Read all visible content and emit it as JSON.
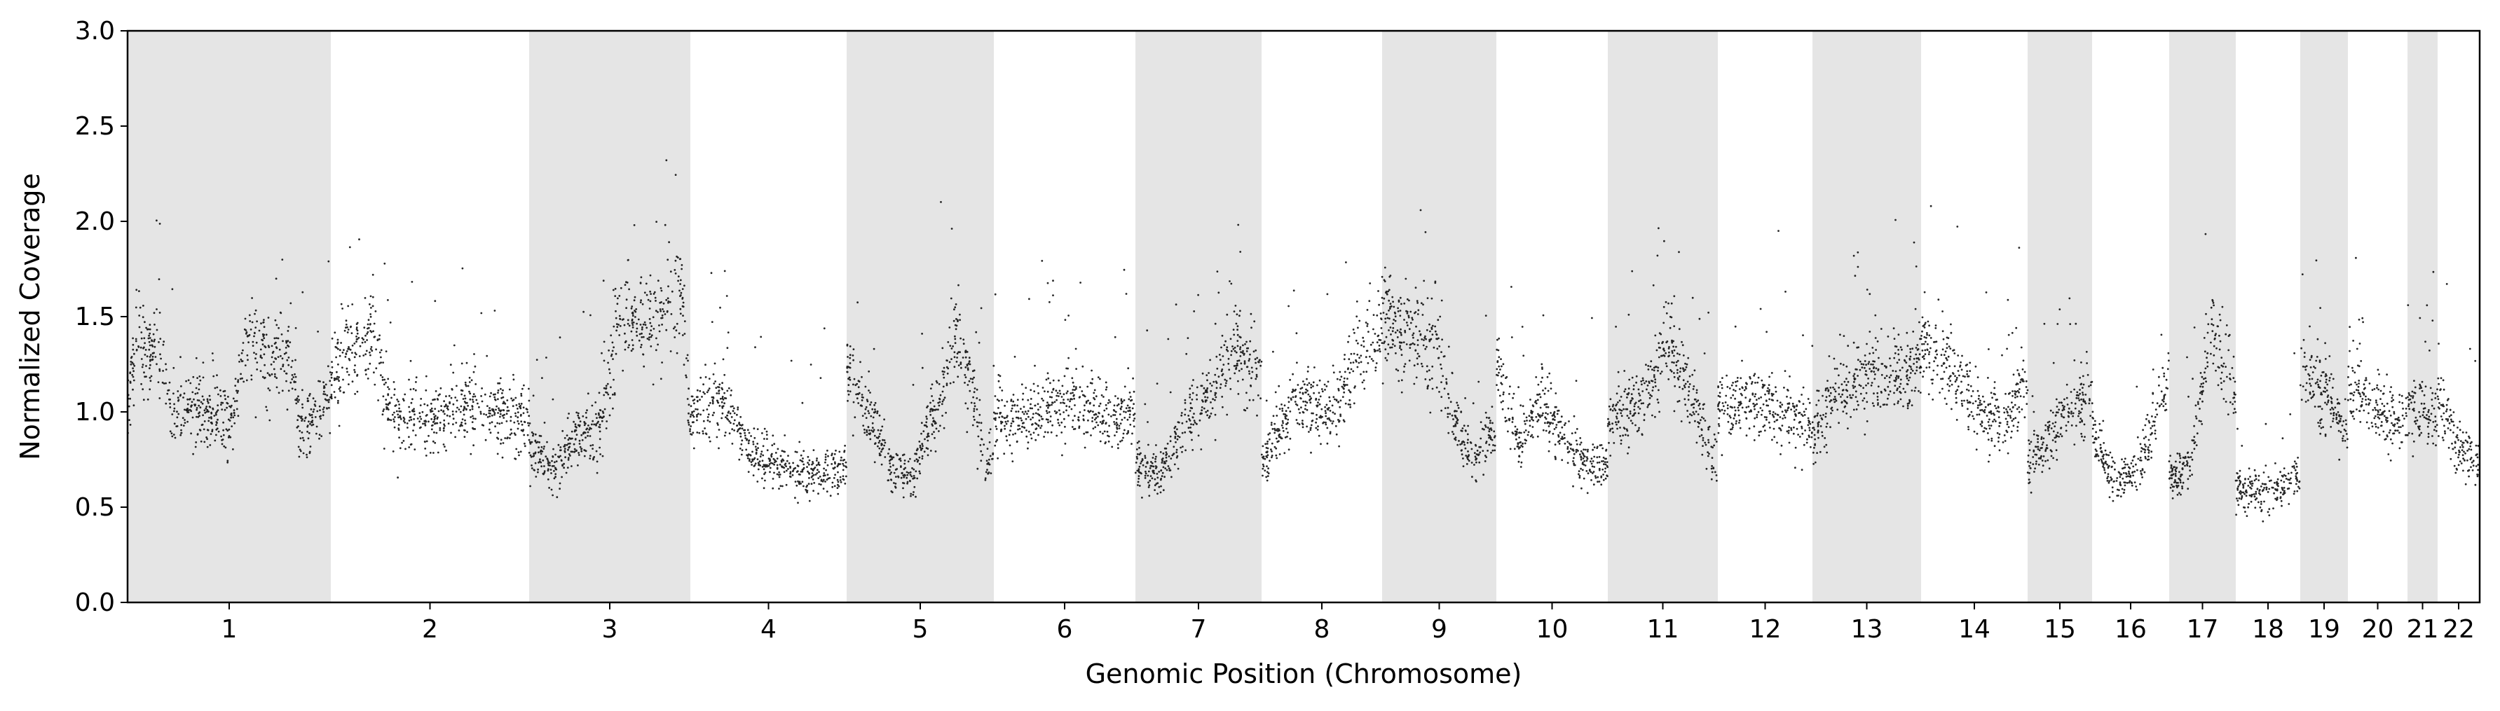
{
  "chart_data": {
    "type": "scatter",
    "xlabel": "Genomic Position (Chromosome)",
    "ylabel": "Normalized Coverage",
    "ylim": [
      0.0,
      3.0
    ],
    "y_ticks": [
      "0.0",
      "0.5",
      "1.0",
      "1.5",
      "2.0",
      "2.5",
      "3.0"
    ],
    "x_categories": [
      "1",
      "2",
      "3",
      "4",
      "5",
      "6",
      "7",
      "8",
      "9",
      "10",
      "11",
      "12",
      "13",
      "14",
      "15",
      "16",
      "17",
      "18",
      "19",
      "20",
      "21",
      "22"
    ],
    "chromosome_shading": "alternating grey bands",
    "grid": false,
    "colors": {
      "points": "#000000",
      "segments": "#ffa500",
      "band": "#e5e5e5"
    },
    "series": [
      {
        "role": "points",
        "description_of_encoding": "per-chromosome approximate coverage profile (chromosome, within-chromosome fraction, level)",
        "profile": [
          [
            "1",
            [
              [
                0.0,
                1.05
              ],
              [
                0.05,
                1.4
              ],
              [
                0.1,
                1.25
              ],
              [
                0.15,
                1.4
              ],
              [
                0.22,
                0.95
              ],
              [
                0.3,
                1.0
              ],
              [
                0.5,
                0.95
              ],
              [
                0.6,
                1.45
              ],
              [
                0.7,
                1.25
              ],
              [
                0.8,
                1.3
              ],
              [
                0.85,
                0.9
              ],
              [
                1.0,
                1.1
              ]
            ]
          ],
          [
            "2",
            [
              [
                0.0,
                1.2
              ],
              [
                0.1,
                1.3
              ],
              [
                0.2,
                1.45
              ],
              [
                0.3,
                1.0
              ],
              [
                0.5,
                0.95
              ],
              [
                0.7,
                1.05
              ],
              [
                0.85,
                1.0
              ],
              [
                1.0,
                0.95
              ]
            ]
          ],
          [
            "3",
            [
              [
                0.0,
                0.8
              ],
              [
                0.15,
                0.7
              ],
              [
                0.3,
                0.85
              ],
              [
                0.45,
                0.95
              ],
              [
                0.55,
                1.45
              ],
              [
                0.75,
                1.5
              ],
              [
                0.9,
                1.55
              ],
              [
                0.95,
                1.6
              ],
              [
                1.0,
                0.85
              ]
            ]
          ],
          [
            "4",
            [
              [
                0.0,
                1.0
              ],
              [
                0.2,
                1.05
              ],
              [
                0.4,
                0.8
              ],
              [
                0.6,
                0.7
              ],
              [
                0.8,
                0.68
              ],
              [
                1.0,
                0.7
              ]
            ]
          ],
          [
            "5",
            [
              [
                0.0,
                1.2
              ],
              [
                0.15,
                1.0
              ],
              [
                0.3,
                0.7
              ],
              [
                0.45,
                0.65
              ],
              [
                0.6,
                1.0
              ],
              [
                0.75,
                1.4
              ],
              [
                0.85,
                1.15
              ],
              [
                0.95,
                0.7
              ],
              [
                1.0,
                0.85
              ]
            ]
          ],
          [
            "6",
            [
              [
                0.0,
                0.95
              ],
              [
                0.3,
                1.0
              ],
              [
                0.6,
                1.05
              ],
              [
                0.8,
                0.95
              ],
              [
                1.0,
                1.0
              ]
            ]
          ],
          [
            "7",
            [
              [
                0.0,
                0.7
              ],
              [
                0.2,
                0.68
              ],
              [
                0.4,
                0.95
              ],
              [
                0.6,
                1.1
              ],
              [
                0.8,
                1.3
              ],
              [
                1.0,
                1.2
              ]
            ]
          ],
          [
            "8",
            [
              [
                0.0,
                0.7
              ],
              [
                0.1,
                0.9
              ],
              [
                0.3,
                1.05
              ],
              [
                0.6,
                1.0
              ],
              [
                0.8,
                1.3
              ],
              [
                1.0,
                1.4
              ]
            ]
          ],
          [
            "9",
            [
              [
                0.0,
                1.5
              ],
              [
                0.15,
                1.45
              ],
              [
                0.35,
                1.38
              ],
              [
                0.5,
                1.35
              ],
              [
                0.6,
                1.0
              ],
              [
                0.8,
                0.75
              ],
              [
                1.0,
                0.9
              ]
            ]
          ],
          [
            "10",
            [
              [
                0.0,
                1.3
              ],
              [
                0.2,
                0.8
              ],
              [
                0.4,
                1.1
              ],
              [
                0.6,
                0.85
              ],
              [
                0.8,
                0.75
              ],
              [
                1.0,
                0.7
              ]
            ]
          ],
          [
            "11",
            [
              [
                0.0,
                0.95
              ],
              [
                0.3,
                1.05
              ],
              [
                0.55,
                1.35
              ],
              [
                0.75,
                1.1
              ],
              [
                1.0,
                0.7
              ]
            ]
          ],
          [
            "12",
            [
              [
                0.0,
                1.0
              ],
              [
                0.3,
                1.05
              ],
              [
                0.6,
                1.0
              ],
              [
                1.0,
                0.95
              ]
            ]
          ],
          [
            "13",
            [
              [
                0.0,
                0.9
              ],
              [
                0.2,
                1.1
              ],
              [
                0.5,
                1.18
              ],
              [
                0.8,
                1.2
              ],
              [
                1.0,
                1.25
              ]
            ]
          ],
          [
            "14",
            [
              [
                0.0,
                1.3
              ],
              [
                0.2,
                1.32
              ],
              [
                0.4,
                1.1
              ],
              [
                0.6,
                1.0
              ],
              [
                0.8,
                0.9
              ],
              [
                1.0,
                1.2
              ]
            ]
          ],
          [
            "15",
            [
              [
                0.0,
                0.7
              ],
              [
                0.3,
                0.85
              ],
              [
                0.6,
                1.0
              ],
              [
                1.0,
                1.1
              ]
            ]
          ],
          [
            "16",
            [
              [
                0.0,
                0.95
              ],
              [
                0.3,
                0.6
              ],
              [
                0.6,
                0.7
              ],
              [
                1.0,
                1.2
              ]
            ]
          ],
          [
            "17",
            [
              [
                0.0,
                0.65
              ],
              [
                0.35,
                0.75
              ],
              [
                0.6,
                1.45
              ],
              [
                0.85,
                1.25
              ],
              [
                1.0,
                1.05
              ]
            ]
          ],
          [
            "18",
            [
              [
                0.0,
                0.6
              ],
              [
                0.5,
                0.58
              ],
              [
                1.0,
                0.65
              ]
            ]
          ],
          [
            "19",
            [
              [
                0.0,
                1.2
              ],
              [
                0.5,
                1.1
              ],
              [
                1.0,
                0.9
              ]
            ]
          ],
          [
            "20",
            [
              [
                0.0,
                1.15
              ],
              [
                0.5,
                1.0
              ],
              [
                1.0,
                0.95
              ]
            ]
          ],
          [
            "21",
            [
              [
                0.0,
                1.0
              ],
              [
                1.0,
                0.95
              ]
            ]
          ],
          [
            "22",
            [
              [
                0.0,
                1.1
              ],
              [
                0.5,
                0.8
              ],
              [
                1.0,
                0.75
              ]
            ]
          ]
        ]
      }
    ]
  }
}
